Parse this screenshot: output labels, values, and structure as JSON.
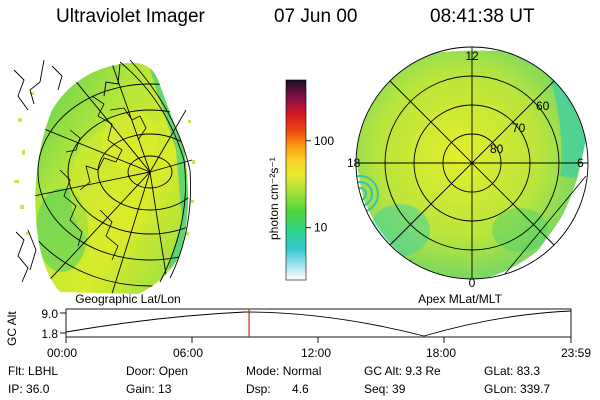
{
  "header": {
    "title": "Ultraviolet Imager",
    "date": "07 Jun 00",
    "time": "08:41:38 UT"
  },
  "left_panel": {
    "caption": "Geographic Lat/Lon"
  },
  "right_panel": {
    "caption": "Apex MLat/MLT",
    "mlt_labels": [
      "12",
      "18",
      "6",
      "0"
    ],
    "mlat_labels": [
      "60",
      "70",
      "80"
    ]
  },
  "colorbar": {
    "unit_label": "photon cm⁻²s⁻¹",
    "scale": "log",
    "range": [
      2.5,
      500
    ],
    "ticks": [
      {
        "value": 10,
        "label": "10"
      },
      {
        "value": 100,
        "label": "100"
      }
    ]
  },
  "timeline": {
    "ylabel": "GC Alt",
    "y_ticks": [
      "9.0",
      "1.8"
    ],
    "x_ticks": [
      "00:00",
      "06:00",
      "12:00",
      "18:00",
      "23:59"
    ],
    "current_time": "08:41:38"
  },
  "info": {
    "row1": [
      {
        "label": "Flt:",
        "value": "LBHL"
      },
      {
        "label": "Door:",
        "value": "Open"
      },
      {
        "label": "Mode:",
        "value": "Normal"
      },
      {
        "label": "GC Alt:",
        "value": "9.3 Re"
      },
      {
        "label": "GLat:",
        "value": "83.3"
      }
    ],
    "row2": [
      {
        "label": "IP:",
        "value": "36.0"
      },
      {
        "label": "Gain:",
        "value": "13"
      },
      {
        "label": "Dsp:",
        "value": "4.6"
      },
      {
        "label": "Seq:",
        "value": "39"
      },
      {
        "label": "GLon:",
        "value": "339.7"
      }
    ]
  },
  "colors": {
    "accent_marker": "#cc2222"
  }
}
